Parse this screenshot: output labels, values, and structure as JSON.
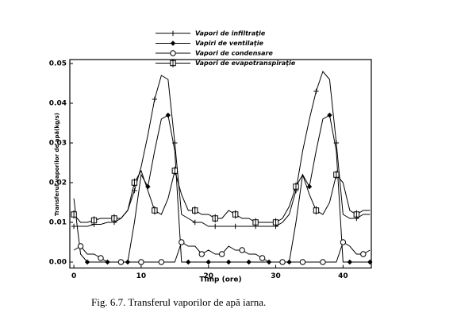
{
  "chart_data": {
    "type": "line",
    "title": "Fig. 6.7. Transferul vaporilor de apă iarna.",
    "x_label": "Timp (ore)",
    "y_label": "Transferul vaporilor de apă(kg/s)",
    "legend": "top",
    "x": [
      0,
      1,
      2,
      3,
      4,
      5,
      6,
      7,
      8,
      9,
      10,
      11,
      12,
      13,
      14,
      15,
      16,
      17,
      18,
      19,
      20,
      21,
      22,
      23,
      24,
      25,
      26,
      27,
      28,
      29,
      30,
      31,
      32,
      33,
      34,
      35,
      36,
      37,
      38,
      39,
      40,
      41,
      42,
      43,
      44
    ],
    "xlim": [
      -0.6,
      44.2
    ],
    "xticks": [
      0,
      10,
      20,
      30,
      40
    ],
    "ylim": [
      -0.0015,
      0.051
    ],
    "yticks": [
      {
        "value": 0,
        "label": "0.00"
      },
      {
        "value": 0.01,
        "label": "0.01"
      },
      {
        "value": 0.02,
        "label": "0.02"
      },
      {
        "value": 0.03,
        "label": "0.03"
      },
      {
        "value": 0.04,
        "label": "0.04"
      },
      {
        "value": 0.05,
        "label": "0.05"
      }
    ],
    "series": [
      {
        "name": "Vapori de infiltraţie",
        "color": "#000000",
        "marker": "plus",
        "values": [
          0.009,
          0.009,
          0.009,
          0.0095,
          0.0095,
          0.01,
          0.01,
          0.011,
          0.013,
          0.018,
          0.024,
          0.032,
          0.041,
          0.047,
          0.046,
          0.03,
          0.012,
          0.011,
          0.01,
          0.01,
          0.009,
          0.009,
          0.009,
          0.009,
          0.009,
          0.009,
          0.009,
          0.009,
          0.009,
          0.009,
          0.009,
          0.01,
          0.012,
          0.018,
          0.028,
          0.036,
          0.043,
          0.048,
          0.046,
          0.03,
          0.012,
          0.011,
          0.011,
          0.012,
          0.012
        ]
      },
      {
        "name": "Vapiri de ventilaţie",
        "color": "#000000",
        "marker": "diamond",
        "values": [
          0.016,
          0.002,
          0,
          0,
          0,
          0,
          0,
          0,
          0,
          0.01,
          0.022,
          0.019,
          0.028,
          0.036,
          0.037,
          0.028,
          0,
          0,
          0,
          0,
          0,
          0,
          0,
          0,
          0,
          0,
          0,
          0,
          0,
          0,
          0,
          0,
          0,
          0.01,
          0.022,
          0.019,
          0.028,
          0.036,
          0.037,
          0.028,
          0,
          0,
          0,
          0,
          0
        ]
      },
      {
        "name": "Vapori de condensare",
        "color": "#000000",
        "marker": "circle",
        "values": [
          0.003,
          0.004,
          0.002,
          0.002,
          0.001,
          0,
          0,
          0,
          0,
          0,
          0,
          0,
          0,
          0,
          0,
          0,
          0.005,
          0.004,
          0.004,
          0.002,
          0.003,
          0.002,
          0.002,
          0.004,
          0.003,
          0.003,
          0.002,
          0.002,
          0.001,
          0,
          0,
          0,
          0,
          0,
          0,
          0,
          0,
          0,
          0,
          0,
          0.005,
          0.004,
          0.002,
          0.002,
          0.003
        ]
      },
      {
        "name": "Vapori de evapotranspiraţie",
        "color": "#000000",
        "marker": "square",
        "values": [
          0.012,
          0.01,
          0.01,
          0.0105,
          0.011,
          0.011,
          0.011,
          0.011,
          0.013,
          0.02,
          0.023,
          0.018,
          0.013,
          0.012,
          0.016,
          0.023,
          0.017,
          0.013,
          0.013,
          0.012,
          0.012,
          0.011,
          0.011,
          0.013,
          0.012,
          0.011,
          0.011,
          0.01,
          0.01,
          0.01,
          0.01,
          0.011,
          0.014,
          0.019,
          0.022,
          0.017,
          0.013,
          0.012,
          0.015,
          0.022,
          0.02,
          0.013,
          0.012,
          0.013,
          0.013
        ]
      }
    ]
  }
}
